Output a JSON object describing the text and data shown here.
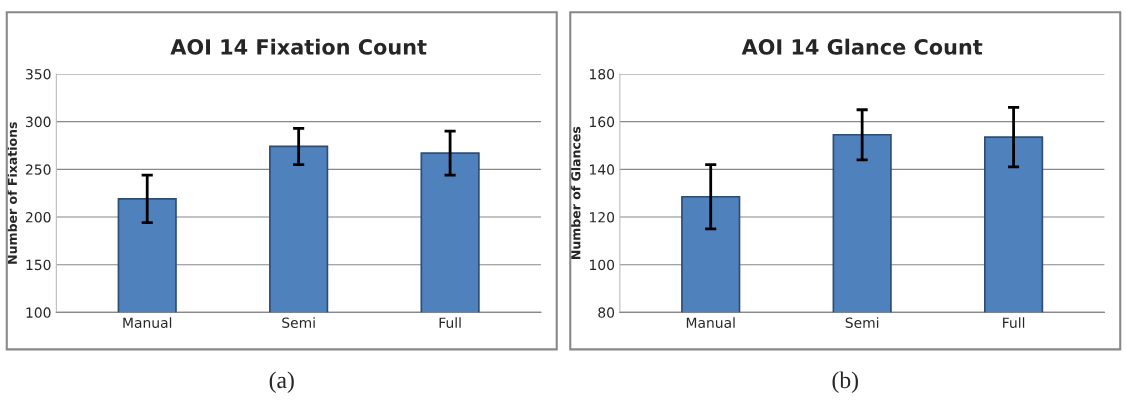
{
  "chart_data": [
    {
      "type": "bar",
      "title": "AOI 14 Fixation Count",
      "ylabel": "Number of Fixations",
      "categories": [
        "Manual",
        "Semi",
        "Full"
      ],
      "values": [
        219,
        274,
        267
      ],
      "errors": [
        25,
        19,
        23
      ],
      "color": "#4f81bd",
      "ylim": [
        100,
        350
      ],
      "yticks": [
        100,
        150,
        200,
        250,
        300,
        350
      ],
      "grid": "y",
      "annotations": [
        "(a)"
      ]
    },
    {
      "type": "bar",
      "title": "AOI 14 Glance Count",
      "ylabel": "Number of Glances",
      "categories": [
        "Manual",
        "Semi",
        "Full"
      ],
      "values": [
        128.5,
        154.5,
        153.5
      ],
      "errors": [
        13.5,
        10.5,
        12.5
      ],
      "color": "#4f81bd",
      "ylim": [
        80,
        180
      ],
      "yticks": [
        80,
        100,
        120,
        140,
        160,
        180
      ],
      "grid": "y",
      "annotations": [
        "(b)"
      ]
    }
  ]
}
